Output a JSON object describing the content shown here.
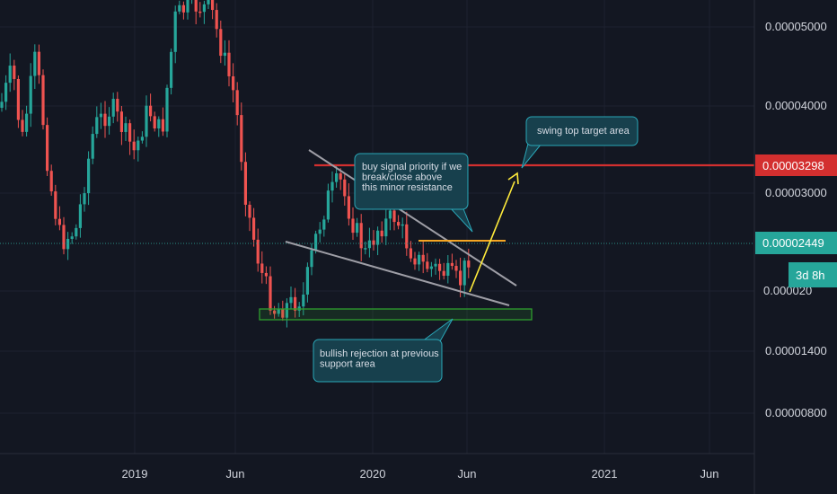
{
  "chart_data": {
    "type": "candlestick",
    "scale": "log",
    "x_ticks": [
      "2019",
      "Jun",
      "2020",
      "Jun",
      "2021",
      "Jun"
    ],
    "y_ticks": [
      "0.00005000",
      "0.00004000",
      "0.00003000",
      "0.00001400",
      "0.00000800"
    ],
    "last_price_label": "0.00002449",
    "countdown_label": "3d 8h",
    "target_price_label": "0.00003298",
    "partial_tick_label": "0.000020",
    "annotations": [
      {
        "id": "buy",
        "text_lines": [
          "buy signal priority if we",
          "break/close above",
          "this minor resistance"
        ]
      },
      {
        "id": "target",
        "text_lines": [
          "swing top target area"
        ]
      },
      {
        "id": "support",
        "text_lines": [
          "bullish rejection at previous",
          "support area"
        ]
      }
    ],
    "colors": {
      "up": "#26a69a",
      "down": "#ef5350",
      "resistance": "#d32f2f",
      "support": "#2e9e2e",
      "arrow": "#ffeb3b",
      "minor_resistance": "#f5a623",
      "trendline": "#9e9ea6",
      "callout_bg": "#17404d",
      "callout_border": "#2aa7b8"
    }
  }
}
